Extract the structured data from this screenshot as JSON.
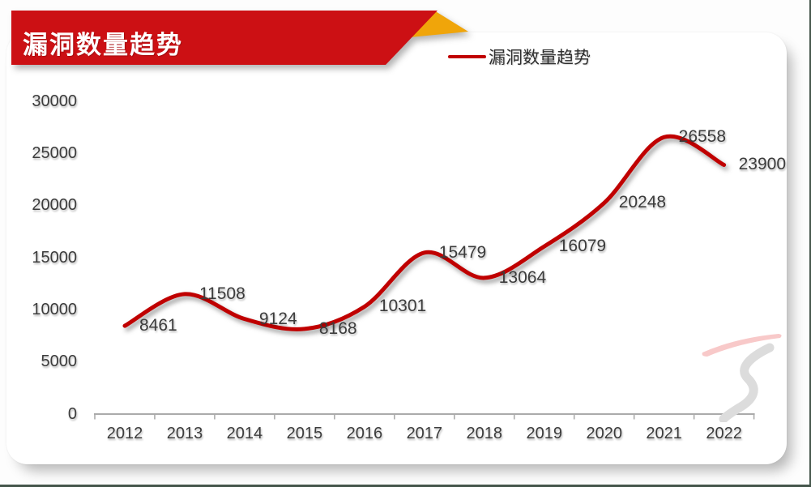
{
  "header": {
    "title": "漏洞数量趋势",
    "banner_red": "#CC1014",
    "accent_gold": "#F0A50A"
  },
  "legend": {
    "label": "漏洞数量趋势",
    "line_color": "#C00000"
  },
  "chart_data": {
    "type": "line",
    "title": "漏洞数量趋势",
    "categories": [
      "2012",
      "2013",
      "2014",
      "2015",
      "2016",
      "2017",
      "2018",
      "2019",
      "2020",
      "2021",
      "2022"
    ],
    "series": [
      {
        "name": "漏洞数量趋势",
        "color": "#C00000",
        "values": [
          8461,
          11508,
          9124,
          8168,
          10301,
          15479,
          13064,
          16079,
          20248,
          26558,
          23900
        ]
      }
    ],
    "data_labels": [
      8461,
      11508,
      9124,
      8168,
      10301,
      15479,
      13064,
      16079,
      20248,
      26558,
      23900
    ],
    "ylim": [
      0,
      30000
    ],
    "yticks": [
      0,
      5000,
      10000,
      15000,
      20000,
      25000,
      30000
    ],
    "xlabel": "",
    "ylabel": "",
    "grid": false,
    "smooth": true,
    "legend_position": "top-right",
    "data_label_position": "right",
    "axis_color": "#ABABAB",
    "label_color": "#3C3C3C"
  },
  "watermark": {
    "stroke_pink": "#F8C9C9",
    "stroke_gray": "#DCDCDC"
  }
}
